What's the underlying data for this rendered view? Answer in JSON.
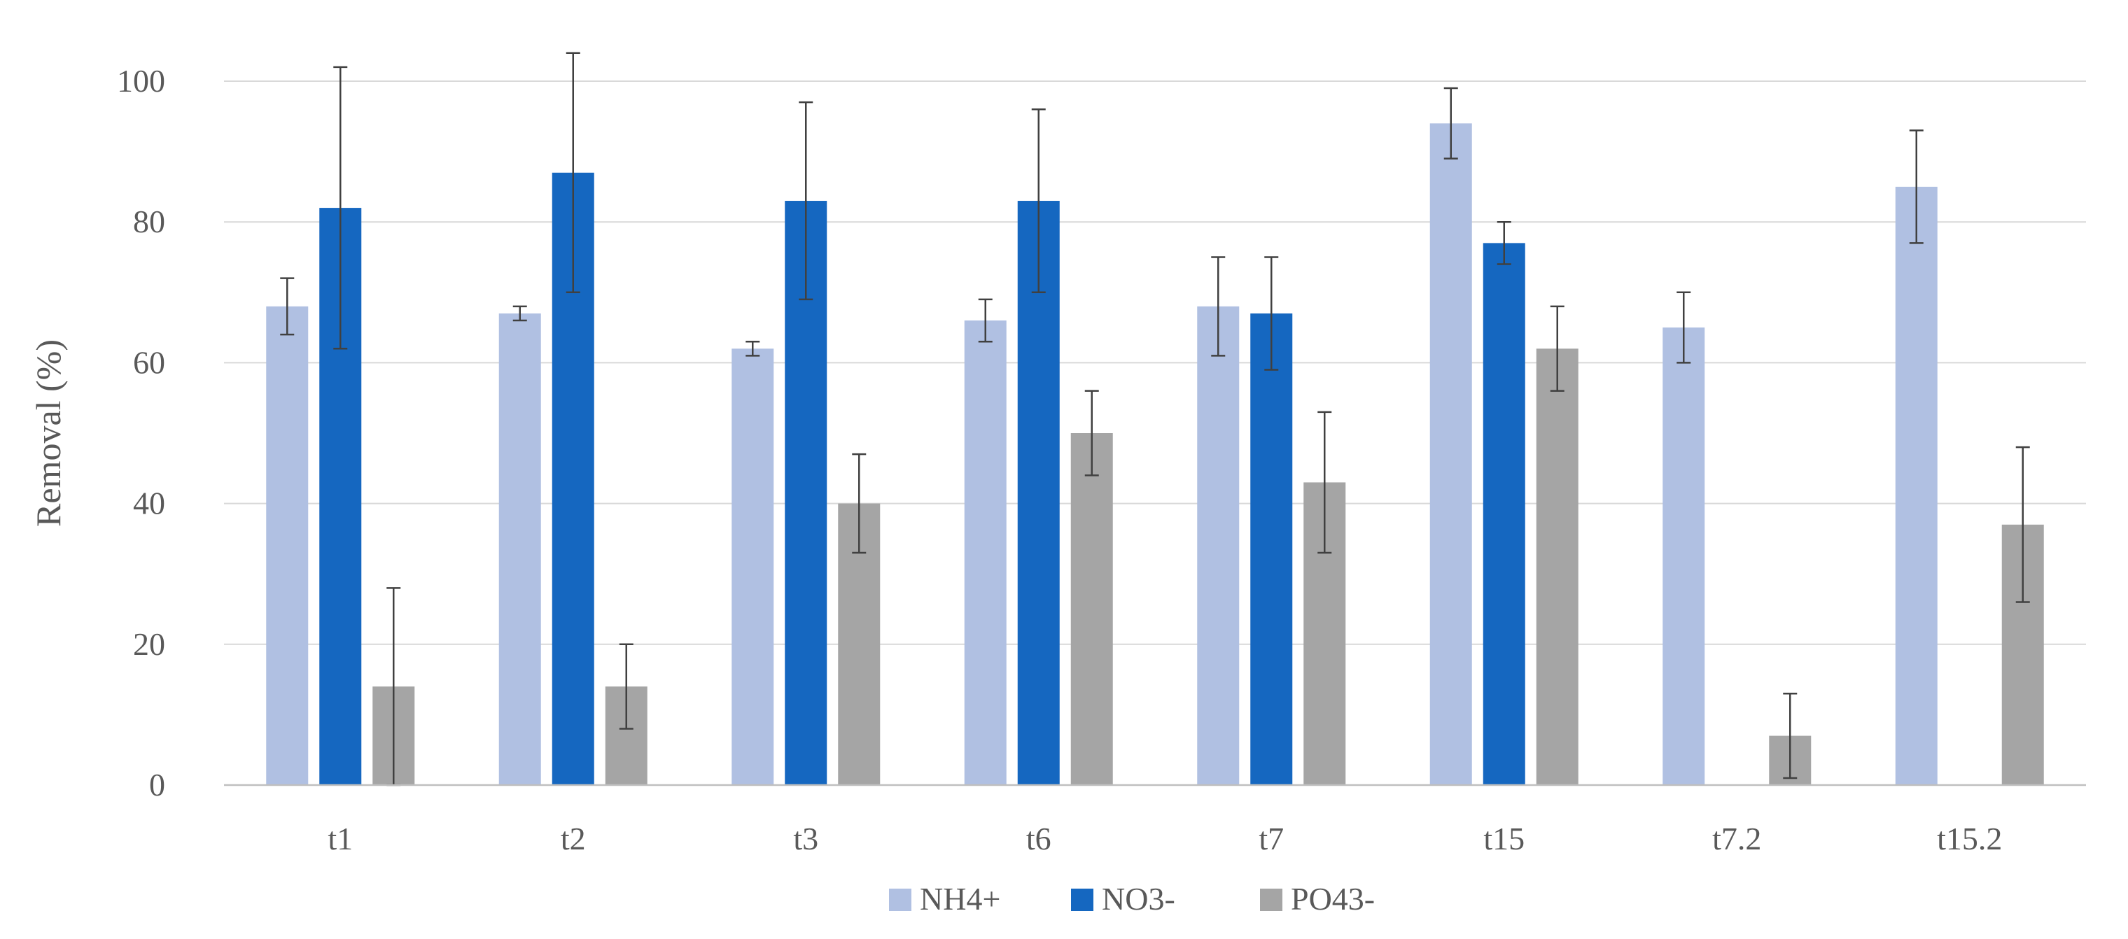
{
  "chart_data": {
    "type": "bar",
    "title": "",
    "xlabel": "",
    "ylabel": "Removal (%)",
    "ylim": [
      0,
      100
    ],
    "yticks": [
      0,
      20,
      40,
      60,
      80,
      100
    ],
    "grid": true,
    "legend_position": "bottom-center",
    "categories": [
      "t1",
      "t2",
      "t3",
      "t6",
      "t7",
      "t15",
      "t7.2",
      "t15.2"
    ],
    "series": [
      {
        "name": "NH4+",
        "color": "#b0c0e2",
        "values": [
          68,
          67,
          62,
          66,
          68,
          94,
          65,
          85
        ],
        "errors": [
          4,
          1,
          1,
          3,
          7,
          5,
          5,
          8
        ]
      },
      {
        "name": "NO3-",
        "color": "#1567c0",
        "values": [
          82,
          87,
          83,
          83,
          67,
          77,
          null,
          null
        ],
        "errors": [
          20,
          17,
          14,
          13,
          8,
          3,
          null,
          null
        ]
      },
      {
        "name": "PO43-",
        "color": "#a5a5a5",
        "values": [
          14,
          14,
          40,
          50,
          43,
          62,
          7,
          37
        ],
        "errors": [
          14,
          6,
          7,
          6,
          10,
          6,
          6,
          11
        ]
      }
    ]
  }
}
